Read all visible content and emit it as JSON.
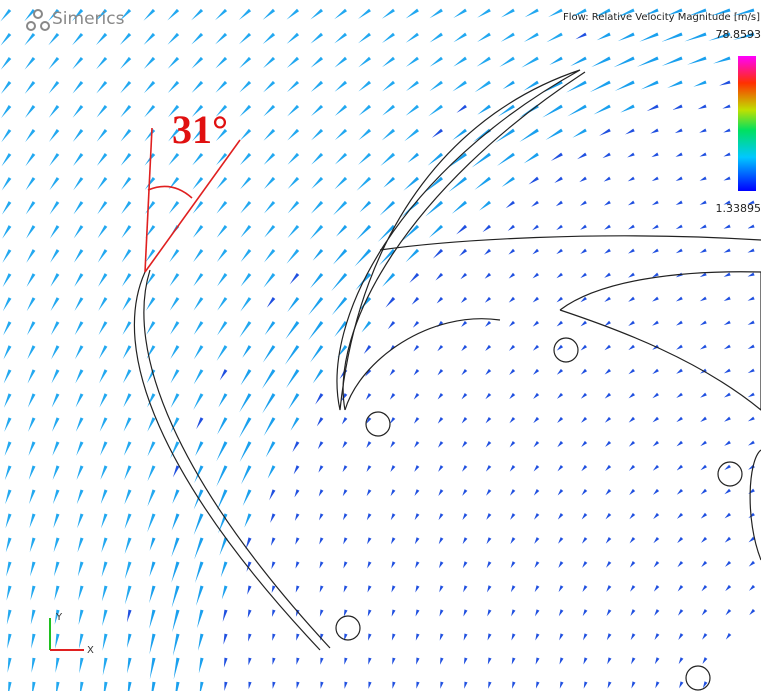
{
  "logo": {
    "text": "Simerics"
  },
  "legend": {
    "title": "Flow: Relative Velocity Magnitude [m/s]",
    "max": "78.8593",
    "min": "1.33895"
  },
  "annotation": {
    "angle": "31°"
  },
  "triad": {
    "x": "X",
    "y": "Y"
  }
}
